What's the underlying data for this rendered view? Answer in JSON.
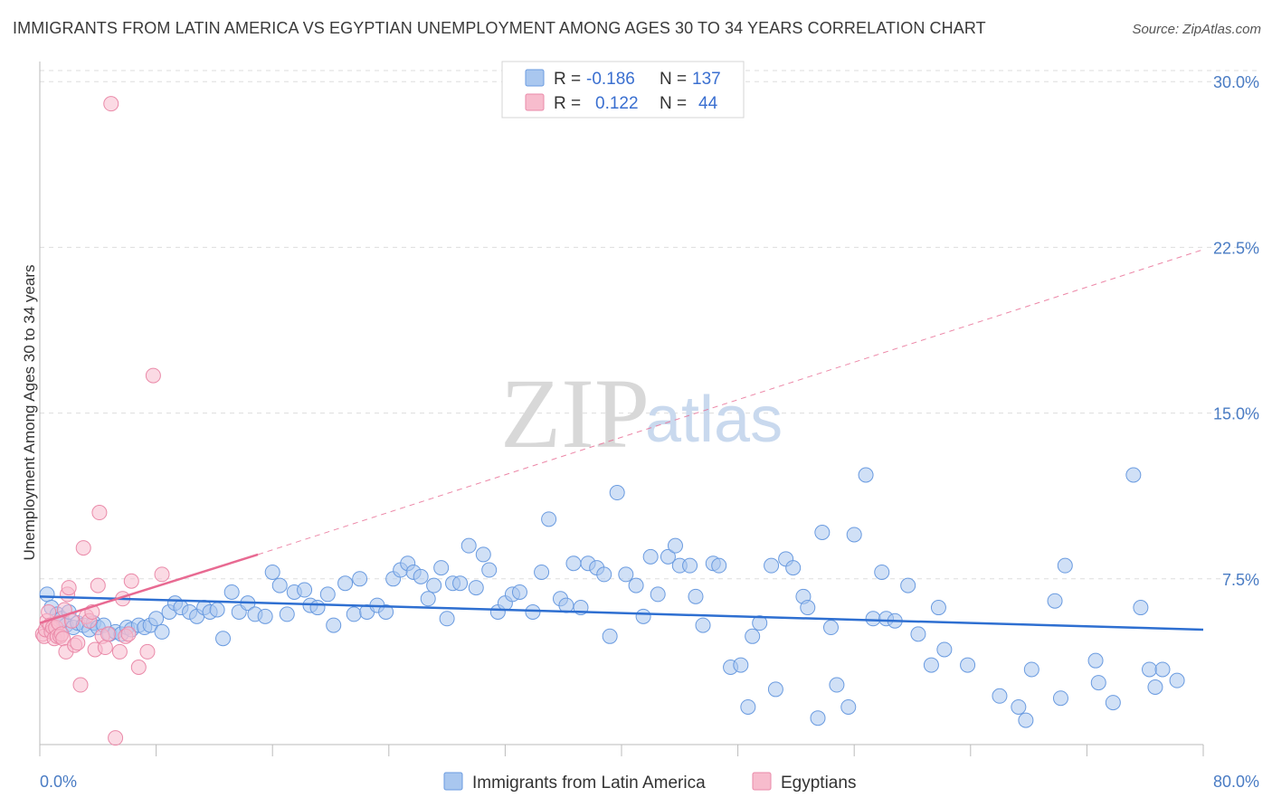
{
  "title": "IMMIGRANTS FROM LATIN AMERICA VS EGYPTIAN UNEMPLOYMENT AMONG AGES 30 TO 34 YEARS CORRELATION CHART",
  "source": "Source: ZipAtlas.com",
  "watermark": {
    "zip": "ZIP",
    "atlas": "atlas"
  },
  "legend_top": {
    "rows": [
      {
        "r_label": "R =",
        "r_value": "-0.186",
        "n_label": "N =",
        "n_value": "137"
      },
      {
        "r_label": "R =",
        "r_value": "0.122",
        "n_label": "N =",
        "n_value": "44"
      }
    ]
  },
  "colors": {
    "blue_fill": "#a9c7ef",
    "blue_stroke": "#6a9be0",
    "blue_line": "#2e6fd1",
    "pink_fill": "#f7bccd",
    "pink_stroke": "#ea8aa9",
    "pink_line": "#e86a92",
    "tick_text": "#4a7cc4",
    "grid": "#dddddd"
  },
  "chart_data": {
    "type": "scatter",
    "title": "IMMIGRANTS FROM LATIN AMERICA VS EGYPTIAN UNEMPLOYMENT AMONG AGES 30 TO 34 YEARS CORRELATION CHART",
    "xlabel": "",
    "ylabel": "Unemployment Among Ages 30 to 34 years",
    "xlim": [
      0,
      80
    ],
    "ylim": [
      0,
      30.5
    ],
    "x_tick_labels": [
      "0.0%",
      "80.0%"
    ],
    "y_ticks": [
      7.5,
      15.0,
      22.5,
      30.0
    ],
    "y_tick_labels": [
      "7.5%",
      "15.0%",
      "22.5%",
      "30.0%"
    ],
    "grid": "horizontal dashed",
    "legend_placement": "bottom-center",
    "series": [
      {
        "name": "Immigrants from Latin America",
        "color": "#a9c7ef",
        "R": -0.186,
        "N": 137,
        "trend": {
          "x": [
            0,
            80
          ],
          "y": [
            6.7,
            5.2
          ]
        },
        "points": [
          [
            0.5,
            6.8
          ],
          [
            0.8,
            6.2
          ],
          [
            1.2,
            5.9
          ],
          [
            1.5,
            5.7
          ],
          [
            1.8,
            5.4
          ],
          [
            2.0,
            6.0
          ],
          [
            2.3,
            5.3
          ],
          [
            2.6,
            5.5
          ],
          [
            3.0,
            5.4
          ],
          [
            3.4,
            5.2
          ],
          [
            3.7,
            5.5
          ],
          [
            4.0,
            5.3
          ],
          [
            4.4,
            5.4
          ],
          [
            4.8,
            5.0
          ],
          [
            5.2,
            5.1
          ],
          [
            5.6,
            5.0
          ],
          [
            6.0,
            5.3
          ],
          [
            6.3,
            5.2
          ],
          [
            6.8,
            5.4
          ],
          [
            7.2,
            5.3
          ],
          [
            7.6,
            5.4
          ],
          [
            8.0,
            5.7
          ],
          [
            8.4,
            5.1
          ],
          [
            8.9,
            6.0
          ],
          [
            9.3,
            6.4
          ],
          [
            9.7,
            6.2
          ],
          [
            10.3,
            6.0
          ],
          [
            10.8,
            5.8
          ],
          [
            11.3,
            6.2
          ],
          [
            11.7,
            6.0
          ],
          [
            12.2,
            6.1
          ],
          [
            12.6,
            4.8
          ],
          [
            13.2,
            6.9
          ],
          [
            13.7,
            6.0
          ],
          [
            14.3,
            6.4
          ],
          [
            14.8,
            5.9
          ],
          [
            15.5,
            5.8
          ],
          [
            16.0,
            7.8
          ],
          [
            16.5,
            7.2
          ],
          [
            17.0,
            5.9
          ],
          [
            17.5,
            6.9
          ],
          [
            18.2,
            7.0
          ],
          [
            18.6,
            6.3
          ],
          [
            19.1,
            6.2
          ],
          [
            19.8,
            6.8
          ],
          [
            20.2,
            5.4
          ],
          [
            21.0,
            7.3
          ],
          [
            21.6,
            5.9
          ],
          [
            22.0,
            7.5
          ],
          [
            22.5,
            6.0
          ],
          [
            23.2,
            6.3
          ],
          [
            23.8,
            6.0
          ],
          [
            24.3,
            7.5
          ],
          [
            24.8,
            7.9
          ],
          [
            25.3,
            8.2
          ],
          [
            25.7,
            7.8
          ],
          [
            26.2,
            7.6
          ],
          [
            26.7,
            6.6
          ],
          [
            27.1,
            7.2
          ],
          [
            27.6,
            8.0
          ],
          [
            28.0,
            5.7
          ],
          [
            28.4,
            7.3
          ],
          [
            28.9,
            7.3
          ],
          [
            29.5,
            9.0
          ],
          [
            30.0,
            7.1
          ],
          [
            30.5,
            8.6
          ],
          [
            30.9,
            7.9
          ],
          [
            31.5,
            6.0
          ],
          [
            32.0,
            6.4
          ],
          [
            32.5,
            6.8
          ],
          [
            33.0,
            6.9
          ],
          [
            33.9,
            6.0
          ],
          [
            34.5,
            7.8
          ],
          [
            35.0,
            10.2
          ],
          [
            35.8,
            6.6
          ],
          [
            36.2,
            6.3
          ],
          [
            36.7,
            8.2
          ],
          [
            37.2,
            6.2
          ],
          [
            37.7,
            8.2
          ],
          [
            38.3,
            8.0
          ],
          [
            38.8,
            7.7
          ],
          [
            39.2,
            4.9
          ],
          [
            39.7,
            11.4
          ],
          [
            40.3,
            7.7
          ],
          [
            41.0,
            7.2
          ],
          [
            41.5,
            5.8
          ],
          [
            42.0,
            8.5
          ],
          [
            42.5,
            6.8
          ],
          [
            43.2,
            8.5
          ],
          [
            43.7,
            9.0
          ],
          [
            44.0,
            8.1
          ],
          [
            44.7,
            8.1
          ],
          [
            45.1,
            6.7
          ],
          [
            45.6,
            5.4
          ],
          [
            46.3,
            8.2
          ],
          [
            46.7,
            8.1
          ],
          [
            47.5,
            3.5
          ],
          [
            48.2,
            3.6
          ],
          [
            48.7,
            1.7
          ],
          [
            49.0,
            4.9
          ],
          [
            49.5,
            5.5
          ],
          [
            50.3,
            8.1
          ],
          [
            50.6,
            2.5
          ],
          [
            51.3,
            8.4
          ],
          [
            51.8,
            8.0
          ],
          [
            52.5,
            6.7
          ],
          [
            52.8,
            6.2
          ],
          [
            53.5,
            1.2
          ],
          [
            53.8,
            9.6
          ],
          [
            54.4,
            5.3
          ],
          [
            54.8,
            2.7
          ],
          [
            55.6,
            1.7
          ],
          [
            56.0,
            9.5
          ],
          [
            56.8,
            12.2
          ],
          [
            57.3,
            5.7
          ],
          [
            57.9,
            7.8
          ],
          [
            58.2,
            5.7
          ],
          [
            58.8,
            5.6
          ],
          [
            59.7,
            7.2
          ],
          [
            60.4,
            5.0
          ],
          [
            61.3,
            3.6
          ],
          [
            61.8,
            6.2
          ],
          [
            62.2,
            4.3
          ],
          [
            63.8,
            3.6
          ],
          [
            66.0,
            2.2
          ],
          [
            67.3,
            1.7
          ],
          [
            67.8,
            1.1
          ],
          [
            68.2,
            3.4
          ],
          [
            69.8,
            6.5
          ],
          [
            70.2,
            2.1
          ],
          [
            70.5,
            8.1
          ],
          [
            72.6,
            3.8
          ],
          [
            72.8,
            2.8
          ],
          [
            73.8,
            1.9
          ],
          [
            75.2,
            12.2
          ],
          [
            75.7,
            6.2
          ],
          [
            76.3,
            3.4
          ],
          [
            76.7,
            2.6
          ],
          [
            77.2,
            3.4
          ],
          [
            78.2,
            2.9
          ]
        ]
      },
      {
        "name": "Egyptians",
        "color": "#f7bccd",
        "R": 0.122,
        "N": 44,
        "trend": {
          "x": [
            0,
            15
          ],
          "y": [
            5.5,
            8.6
          ]
        },
        "trend_extended": {
          "x": [
            15,
            80
          ],
          "y": [
            8.6,
            22.4
          ]
        },
        "points": [
          [
            0.2,
            5.0
          ],
          [
            0.3,
            4.9
          ],
          [
            0.4,
            5.2
          ],
          [
            0.5,
            5.6
          ],
          [
            0.6,
            6.0
          ],
          [
            0.7,
            5.4
          ],
          [
            0.8,
            5.1
          ],
          [
            0.9,
            5.3
          ],
          [
            1.0,
            4.8
          ],
          [
            1.1,
            5.3
          ],
          [
            1.2,
            4.9
          ],
          [
            1.3,
            5.5
          ],
          [
            1.4,
            4.9
          ],
          [
            1.5,
            5.0
          ],
          [
            1.6,
            4.8
          ],
          [
            1.7,
            6.1
          ],
          [
            1.8,
            4.2
          ],
          [
            1.9,
            6.8
          ],
          [
            2.0,
            7.1
          ],
          [
            2.2,
            5.6
          ],
          [
            2.4,
            4.5
          ],
          [
            2.6,
            4.6
          ],
          [
            2.8,
            2.7
          ],
          [
            3.0,
            8.9
          ],
          [
            3.2,
            5.8
          ],
          [
            3.4,
            5.6
          ],
          [
            3.6,
            6.0
          ],
          [
            3.8,
            4.3
          ],
          [
            4.0,
            7.2
          ],
          [
            4.1,
            10.5
          ],
          [
            4.3,
            4.9
          ],
          [
            4.5,
            4.4
          ],
          [
            4.7,
            5.0
          ],
          [
            4.9,
            29.0
          ],
          [
            5.2,
            0.3
          ],
          [
            5.5,
            4.2
          ],
          [
            5.7,
            6.6
          ],
          [
            5.9,
            4.9
          ],
          [
            6.1,
            5.0
          ],
          [
            6.3,
            7.4
          ],
          [
            6.8,
            3.5
          ],
          [
            7.4,
            4.2
          ],
          [
            7.8,
            16.7
          ],
          [
            8.4,
            7.7
          ]
        ]
      }
    ]
  }
}
